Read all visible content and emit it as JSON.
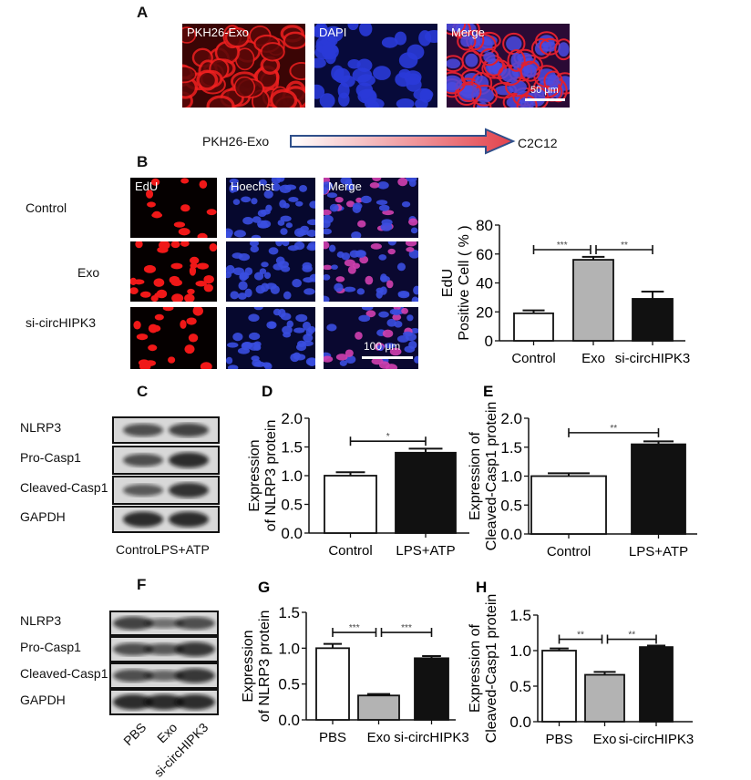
{
  "panel_a": {
    "label": "A",
    "images": [
      {
        "label": "PKH26-Exo",
        "stain": "red"
      },
      {
        "label": "DAPI",
        "stain": "blue"
      },
      {
        "label": "Merge",
        "stain": "merge"
      }
    ],
    "scale_bar": "50 μm",
    "arrow_from": "PKH26-Exo",
    "arrow_to": "C2C12"
  },
  "panel_b": {
    "label": "B",
    "columns": [
      "EdU",
      "Hoechst",
      "Merge"
    ],
    "rows": [
      "Control",
      "Exo",
      "si-circHIPK3"
    ],
    "scale_bar": "100 μm"
  },
  "panel_c": {
    "label": "C",
    "proteins": [
      "NLRP3",
      "Pro-Casp1",
      "Cleaved-Casp1",
      "GAPDH"
    ],
    "lanes": [
      "Control",
      "LPS+ATP"
    ]
  },
  "panel_f": {
    "label": "F",
    "proteins": [
      "NLRP3",
      "Pro-Casp1",
      "Cleaved-Casp1",
      "GAPDH"
    ],
    "lanes": [
      "PBS",
      "Exo",
      "si-circHIPK3"
    ]
  },
  "chart_data": [
    {
      "panel": "B",
      "type": "bar",
      "ylabel": [
        "EdU",
        "Positive Cell ( % )"
      ],
      "categories": [
        "Control",
        "Exo",
        "si-circHIPK3"
      ],
      "values": [
        19,
        56,
        29
      ],
      "errors": [
        2,
        2,
        5
      ],
      "colors": [
        "#ffffff",
        "#b3b3b3",
        "#111111"
      ],
      "ylim": [
        0,
        80
      ],
      "yticks": [
        "0",
        "20",
        "40",
        "60",
        "80"
      ],
      "ytick_values": [
        0,
        20,
        40,
        60,
        80
      ],
      "significance": [
        {
          "from": 0,
          "to": 1,
          "label": "***",
          "y": 63
        },
        {
          "from": 1,
          "to": 2,
          "label": "**",
          "y": 63
        }
      ]
    },
    {
      "panel": "D",
      "type": "bar",
      "ylabel": [
        "Expression",
        "of NLRP3 protein"
      ],
      "categories": [
        "Control",
        "LPS+ATP"
      ],
      "values": [
        1.0,
        1.4
      ],
      "errors": [
        0.06,
        0.07
      ],
      "colors": [
        "#ffffff",
        "#111111"
      ],
      "ylim": [
        0,
        2.0
      ],
      "yticks": [
        "0.0",
        "0.5",
        "1.0",
        "1.5",
        "2.0"
      ],
      "ytick_values": [
        0,
        0.5,
        1.0,
        1.5,
        2.0
      ],
      "significance": [
        {
          "from": 0,
          "to": 1,
          "label": "*",
          "y": 1.6
        }
      ]
    },
    {
      "panel": "E",
      "type": "bar",
      "ylabel": [
        "Expression of",
        "Cleaved-Casp1 protein"
      ],
      "categories": [
        "Control",
        "LPS+ATP"
      ],
      "values": [
        1.0,
        1.55
      ],
      "errors": [
        0.05,
        0.05
      ],
      "colors": [
        "#ffffff",
        "#111111"
      ],
      "ylim": [
        0,
        2.0
      ],
      "yticks": [
        "0.0",
        "0.5",
        "1.0",
        "1.5",
        "2.0"
      ],
      "ytick_values": [
        0,
        0.5,
        1.0,
        1.5,
        2.0
      ],
      "significance": [
        {
          "from": 0,
          "to": 1,
          "label": "**",
          "y": 1.75
        }
      ]
    },
    {
      "panel": "G",
      "type": "bar",
      "ylabel": [
        "Expression",
        "of NLRP3 protein"
      ],
      "categories": [
        "PBS",
        "Exo",
        "si-circHIPK3"
      ],
      "values": [
        1.0,
        0.34,
        0.86
      ],
      "errors": [
        0.06,
        0.02,
        0.03
      ],
      "colors": [
        "#ffffff",
        "#b3b3b3",
        "#111111"
      ],
      "ylim": [
        0,
        1.5
      ],
      "yticks": [
        "0.0",
        "0.5",
        "1.0",
        "1.5"
      ],
      "ytick_values": [
        0,
        0.5,
        1.0,
        1.5
      ],
      "significance": [
        {
          "from": 0,
          "to": 1,
          "label": "***",
          "y": 1.22
        },
        {
          "from": 1,
          "to": 2,
          "label": "***",
          "y": 1.22
        }
      ]
    },
    {
      "panel": "H",
      "type": "bar",
      "ylabel": [
        "Expression of",
        "Cleaved-Casp1 protein"
      ],
      "categories": [
        "PBS",
        "Exo",
        "si-circHIPK3"
      ],
      "values": [
        1.0,
        0.66,
        1.05
      ],
      "errors": [
        0.03,
        0.04,
        0.02
      ],
      "colors": [
        "#ffffff",
        "#b3b3b3",
        "#111111"
      ],
      "ylim": [
        0,
        1.5
      ],
      "yticks": [
        "0.0",
        "0.5",
        "1.0",
        "1.5"
      ],
      "ytick_values": [
        0,
        0.5,
        1.0,
        1.5
      ],
      "significance": [
        {
          "from": 0,
          "to": 1,
          "label": "**",
          "y": 1.16
        },
        {
          "from": 1,
          "to": 2,
          "label": "**",
          "y": 1.16
        }
      ]
    }
  ]
}
